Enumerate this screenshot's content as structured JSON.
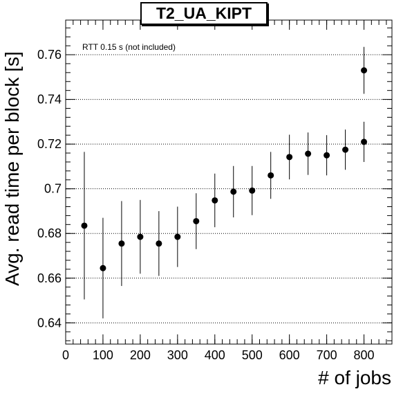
{
  "chart_data": {
    "type": "scatter",
    "title": "T2_UA_KIPT",
    "xlabel": "# of jobs",
    "ylabel": "Avg. read time per block [s]",
    "annotation": "RTT 0.15 s (not included)",
    "xlim": [
      0,
      875
    ],
    "ylim": [
      0.6305,
      0.7755
    ],
    "x_ticks": [
      0,
      100,
      200,
      300,
      400,
      500,
      600,
      700,
      800
    ],
    "y_ticks": [
      0.64,
      0.66,
      0.68,
      0.7,
      0.72,
      0.74,
      0.76
    ],
    "y_tick_labels": [
      "0.64",
      "0.66",
      "0.68",
      "0.7",
      "0.72",
      "0.74",
      "0.76"
    ],
    "grid": "horizontal dotted",
    "series": [
      {
        "marker": "circle",
        "color": "#000000",
        "points": [
          {
            "x": 50,
            "y": 0.6835,
            "err": 0.033
          },
          {
            "x": 100,
            "y": 0.6645,
            "err": 0.0225
          },
          {
            "x": 150,
            "y": 0.6755,
            "err": 0.019
          },
          {
            "x": 200,
            "y": 0.6785,
            "err": 0.0165
          },
          {
            "x": 250,
            "y": 0.6755,
            "err": 0.0145
          },
          {
            "x": 300,
            "y": 0.6785,
            "err": 0.0135
          },
          {
            "x": 350,
            "y": 0.6855,
            "err": 0.0125
          },
          {
            "x": 400,
            "y": 0.6948,
            "err": 0.012
          },
          {
            "x": 450,
            "y": 0.6987,
            "err": 0.0115
          },
          {
            "x": 500,
            "y": 0.6992,
            "err": 0.011
          },
          {
            "x": 550,
            "y": 0.706,
            "err": 0.0105
          },
          {
            "x": 600,
            "y": 0.7142,
            "err": 0.01
          },
          {
            "x": 650,
            "y": 0.7157,
            "err": 0.0095
          },
          {
            "x": 700,
            "y": 0.715,
            "err": 0.009
          },
          {
            "x": 750,
            "y": 0.7175,
            "err": 0.009
          },
          {
            "x": 800,
            "y": 0.721,
            "err": 0.009
          },
          {
            "x": 800,
            "y": 0.753,
            "err": 0.0105
          }
        ]
      }
    ]
  }
}
